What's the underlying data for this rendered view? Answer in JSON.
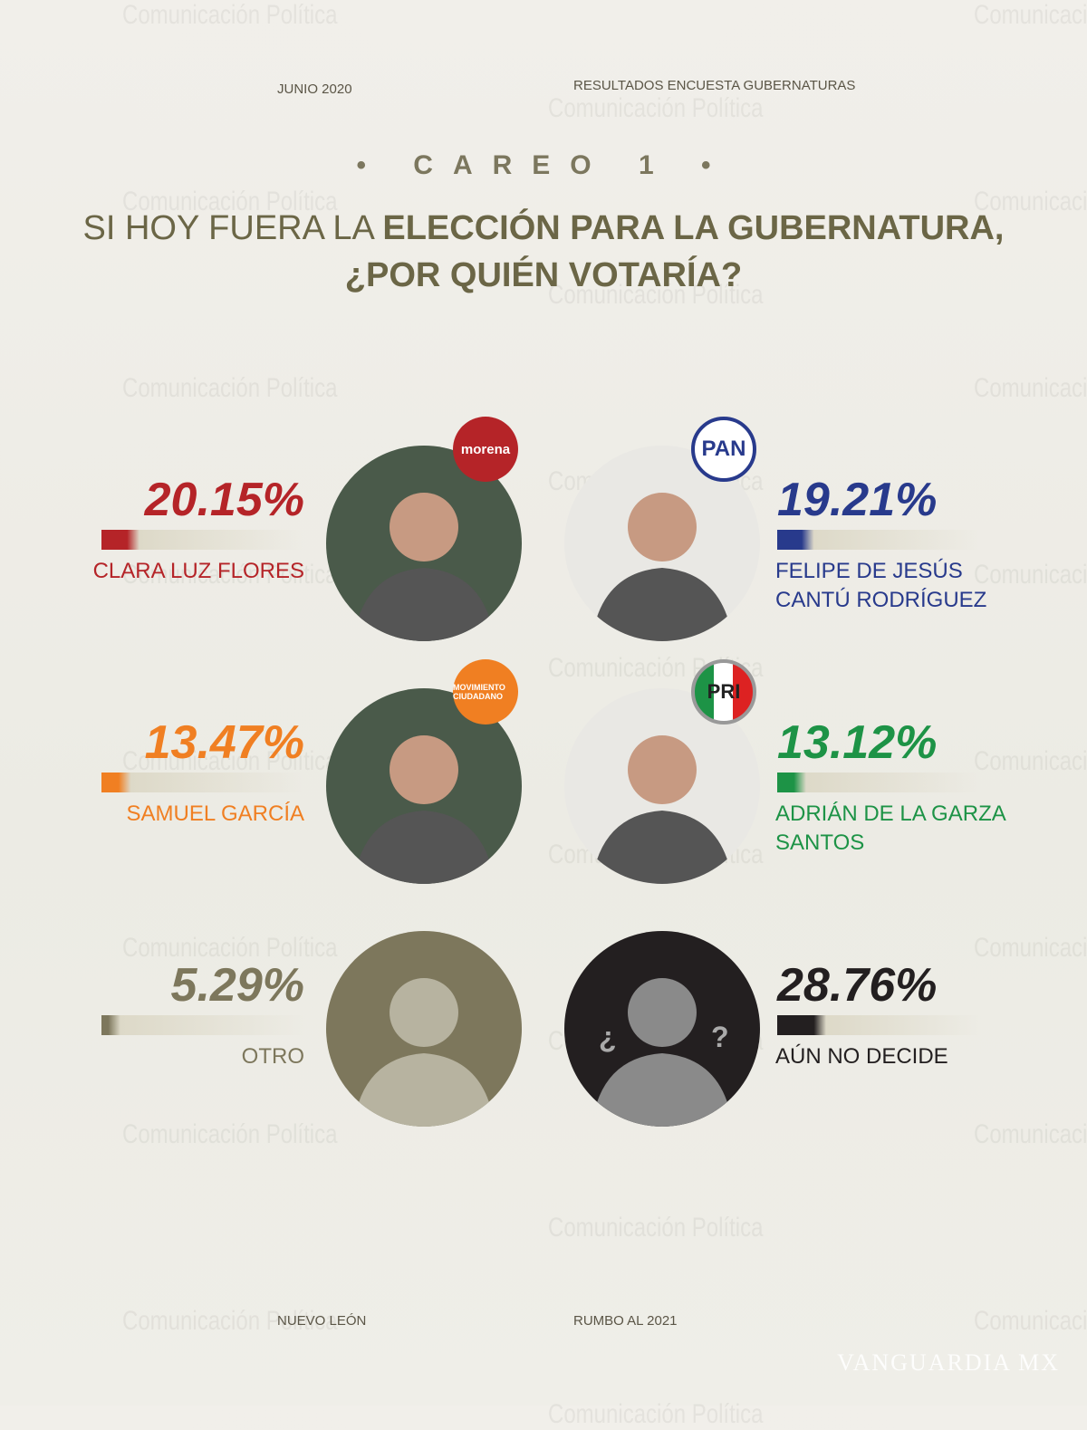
{
  "header": {
    "date": "JUNIO 2020",
    "subtitle": "RESULTADOS ENCUESTA GUBERNATURAS",
    "careo": "• CAREO 1 •",
    "question_line1_plain": "SI HOY FUERA LA ",
    "question_line1_bold": "ELECCIÓN PARA LA GUBERNATURA,",
    "question_line2": "¿POR QUIÉN VOTARÍA?"
  },
  "footer": {
    "state": "NUEVO LEÓN",
    "tagline": "RUMBO AL 2021"
  },
  "watermark": "Comunicación Política",
  "credit": "VANGUARDIA MX",
  "chart_data": {
    "type": "bar",
    "categories": [
      "CLARA LUZ FLORES",
      "FELIPE DE JESÚS CANTÚ RODRÍGUEZ",
      "SAMUEL GARCÍA",
      "ADRIÁN DE LA GARZA SANTOS",
      "OTRO",
      "AÚN NO DECIDE"
    ],
    "values": [
      20.15,
      19.21,
      13.47,
      13.12,
      5.29,
      28.76
    ],
    "labels": [
      "20.15%",
      "19.21%",
      "13.47%",
      "13.12%",
      "5.29%",
      "28.76%"
    ],
    "parties": [
      "morena",
      "PAN",
      "MOVIMIENTO CIUDADANO",
      "PRI",
      "",
      ""
    ],
    "colors": [
      "#b52428",
      "#283a8c",
      "#f07f22",
      "#1d9346",
      "#7d775c",
      "#231f20"
    ],
    "name_lines": [
      [
        "CLARA LUZ FLORES"
      ],
      [
        "FELIPE DE JESÚS",
        "CANTÚ RODRÍGUEZ"
      ],
      [
        "SAMUEL GARCÍA"
      ],
      [
        "ADRIÁN DE LA GARZA",
        "SANTOS"
      ],
      [
        "OTRO"
      ],
      [
        "AÚN NO DECIDE"
      ]
    ]
  }
}
